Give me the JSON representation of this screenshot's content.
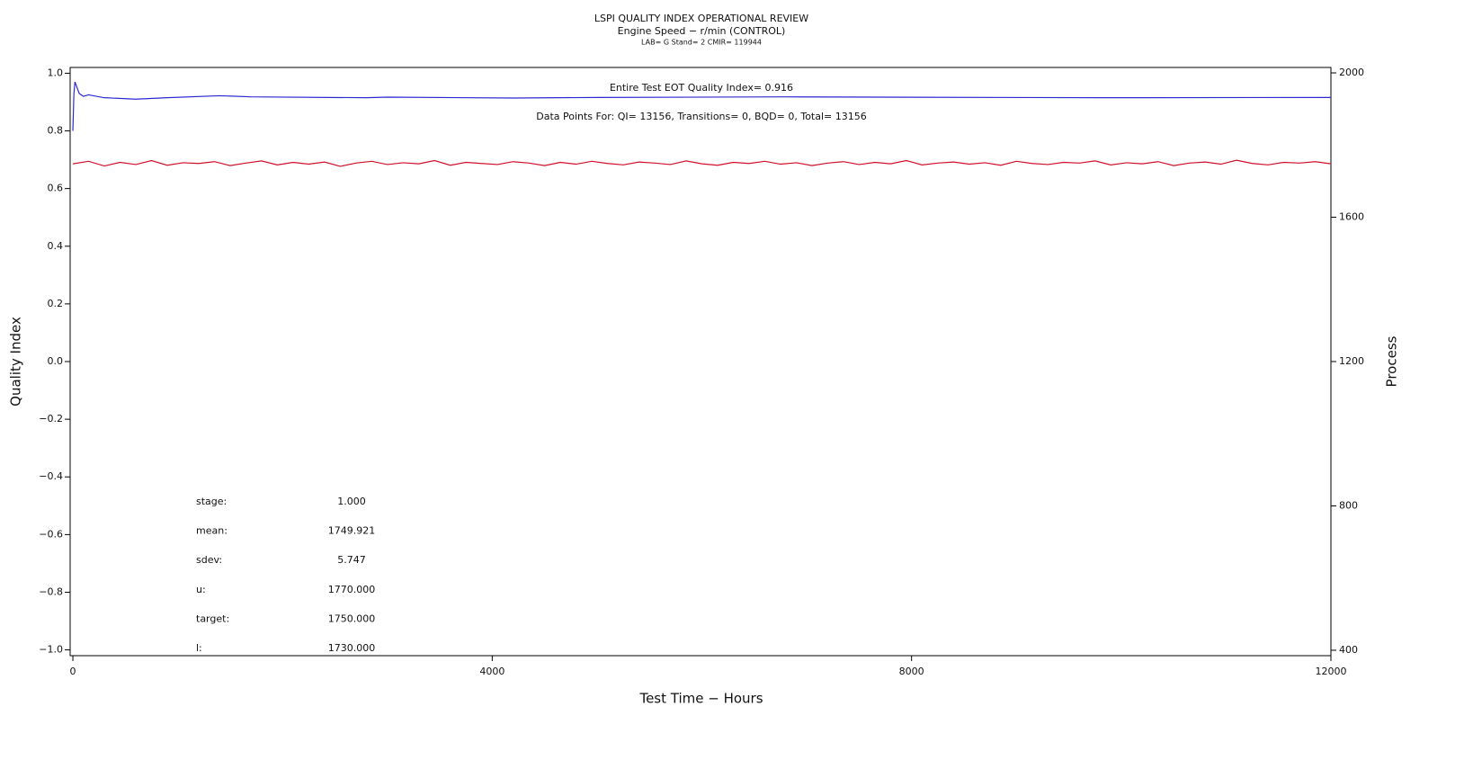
{
  "chart_data": {
    "type": "line",
    "title": "LSPI QUALITY INDEX OPERATIONAL REVIEW",
    "subtitle": "Engine Speed − r/min (CONTROL)",
    "subtitle2": "LAB= G Stand= 2 CMIR= 119944",
    "xlabel": "Test Time − Hours",
    "ylabel": "Quality Index",
    "y2label": "Process",
    "annotations": [
      "Entire Test EOT Quality Index=  0.916",
      "Data Points For: QI= 13156, Transitions=    0, BQD=    0, Total= 13156"
    ],
    "stats": [
      {
        "label": "stage:",
        "value": "1.000"
      },
      {
        "label": "mean:",
        "value": "1749.921"
      },
      {
        "label": "sdev:",
        "value": "5.747"
      },
      {
        "label": "u:",
        "value": "1770.000"
      },
      {
        "label": "target:",
        "value": "1750.000"
      },
      {
        "label": "l:",
        "value": "1730.000"
      }
    ],
    "xlim": [
      -26,
      12000
    ],
    "xticks": [
      0,
      4000,
      8000,
      12000
    ],
    "ylim": [
      -1.02,
      1.02
    ],
    "yticks": [
      {
        "value": 1,
        "label": "1.0"
      },
      0.8,
      0.6,
      0.4,
      0.2,
      {
        "value": 0,
        "label": "0.0"
      },
      {
        "value": -0.2,
        "label": "−0.2"
      },
      {
        "value": -0.4,
        "label": "−0.4"
      },
      {
        "value": -0.6,
        "label": "−0.6"
      },
      {
        "value": -0.8,
        "label": "−0.8"
      },
      {
        "value": -1,
        "label": "−1.0"
      }
    ],
    "y2lim": [
      385,
      2015
    ],
    "y2ticks": [
      400,
      800,
      1200,
      1600,
      2000
    ],
    "series": [
      {
        "color": "#d0102a",
        "axis": "y2",
        "x": [
          0,
          150,
          300,
          450,
          600,
          750,
          900,
          1050,
          1200,
          1350,
          1500,
          1650,
          1800,
          1950,
          2100,
          2250,
          2400,
          2550,
          2700,
          2850,
          3000,
          3150,
          3300,
          3450,
          3600,
          3750,
          3900,
          4050,
          4200,
          4350,
          4500,
          4650,
          4800,
          4950,
          5100,
          5250,
          5400,
          5550,
          5700,
          5850,
          6000,
          6150,
          6300,
          6450,
          6600,
          6750,
          6900,
          7050,
          7200,
          7350,
          7500,
          7650,
          7800,
          7950,
          8100,
          8250,
          8400,
          8550,
          8700,
          8850,
          9000,
          9150,
          9300,
          9450,
          9600,
          9750,
          9900,
          10050,
          10200,
          10350,
          10500,
          10650,
          10800,
          10950,
          11100,
          11250,
          11400,
          11550,
          11700,
          11850,
          12000
        ],
        "values": [
          1748,
          1755,
          1742,
          1752,
          1746,
          1757,
          1744,
          1751,
          1749,
          1754,
          1743,
          1750,
          1756,
          1745,
          1752,
          1747,
          1753,
          1741,
          1750,
          1755,
          1746,
          1751,
          1748,
          1757,
          1744,
          1752,
          1749,
          1746,
          1754,
          1750,
          1743,
          1752,
          1747,
          1755,
          1749,
          1745,
          1753,
          1750,
          1746,
          1756,
          1748,
          1744,
          1752,
          1749,
          1755,
          1747,
          1751,
          1743,
          1750,
          1754,
          1746,
          1752,
          1748,
          1757,
          1745,
          1750,
          1753,
          1747,
          1751,
          1744,
          1755,
          1749,
          1746,
          1752,
          1750,
          1756,
          1745,
          1751,
          1748,
          1754,
          1743,
          1750,
          1753,
          1747,
          1758,
          1749,
          1745,
          1752,
          1750,
          1754,
          1748
        ]
      },
      {
        "color": "#2a2ad0",
        "x": [
          0,
          10,
          20,
          40,
          60,
          100,
          150,
          300,
          600,
          900,
          1400,
          1700,
          2800,
          3000,
          4200,
          5000,
          6800,
          9800,
          12000
        ],
        "values": [
          0.8,
          0.93,
          0.97,
          0.95,
          0.93,
          0.92,
          0.925,
          0.915,
          0.91,
          0.915,
          0.922,
          0.918,
          0.915,
          0.917,
          0.914,
          0.916,
          0.918,
          0.915,
          0.916
        ]
      }
    ]
  }
}
